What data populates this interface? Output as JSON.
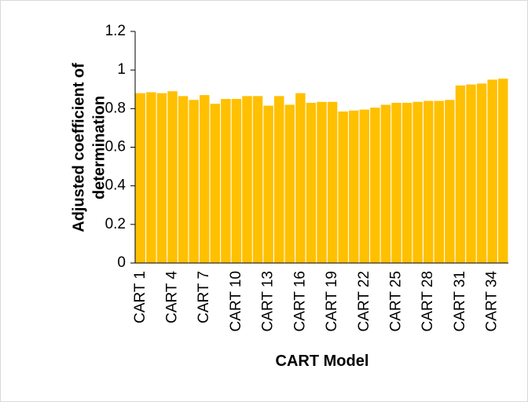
{
  "chart_data": {
    "type": "bar",
    "x_label": "CART Model",
    "y_label": [
      "Adjusted coefficient of",
      "determination"
    ],
    "categories": [
      "CART 1",
      null,
      null,
      "CART 4",
      null,
      null,
      "CART 7",
      null,
      null,
      "CART 10",
      null,
      null,
      "CART 13",
      null,
      null,
      "CART 16",
      null,
      null,
      "CART 19",
      null,
      null,
      "CART 22",
      null,
      null,
      "CART 25",
      null,
      null,
      "CART 28",
      null,
      null,
      "CART 31",
      null,
      null,
      "CART 34",
      null
    ],
    "values": [
      0.88,
      0.885,
      0.88,
      0.89,
      0.865,
      0.845,
      0.87,
      0.825,
      0.85,
      0.85,
      0.865,
      0.865,
      0.815,
      0.865,
      0.82,
      0.88,
      0.83,
      0.835,
      0.835,
      0.785,
      0.79,
      0.795,
      0.805,
      0.82,
      0.83,
      0.83,
      0.835,
      0.84,
      0.84,
      0.845,
      0.92,
      0.925,
      0.93,
      0.95,
      0.955
    ],
    "color": "#ffc000",
    "ylim": [
      0,
      1.2
    ],
    "yticks": [
      0,
      0.2,
      0.4,
      0.6,
      0.8,
      1,
      1.2
    ],
    "grid": false
  }
}
